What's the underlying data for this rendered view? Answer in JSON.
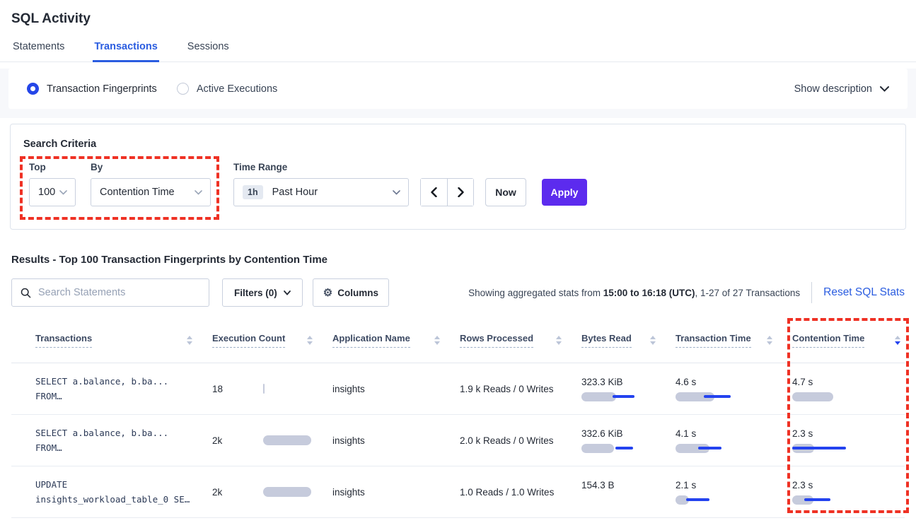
{
  "page_title": "SQL Activity",
  "tabs": {
    "statements": "Statements",
    "transactions": "Transactions",
    "sessions": "Sessions"
  },
  "view_toggle": {
    "fingerprints_label": "Transaction Fingerprints",
    "active_executions_label": "Active Executions",
    "show_description_label": "Show description"
  },
  "search_criteria": {
    "title": "Search Criteria",
    "top_label": "Top",
    "top_value": "100",
    "by_label": "By",
    "by_value": "Contention Time",
    "time_range_label": "Time Range",
    "time_range_badge": "1h",
    "time_range_value": "Past Hour",
    "now_label": "Now",
    "apply_label": "Apply"
  },
  "results": {
    "heading": "Results - Top 100 Transaction Fingerprints by Contention Time",
    "search_placeholder": "Search Statements",
    "filters_label": "Filters (0)",
    "columns_label": "Columns",
    "stats_prefix": "Showing aggregated stats from ",
    "stats_bold": "15:00 to 16:18 (UTC)",
    "stats_suffix": ", 1-27 of 27 Transactions",
    "reset_label": "Reset SQL Stats"
  },
  "table": {
    "headers": [
      {
        "label": "Transactions",
        "sort": "none"
      },
      {
        "label": "Execution Count",
        "sort": "none"
      },
      {
        "label": "Application Name",
        "sort": "none"
      },
      {
        "label": "Rows Processed",
        "sort": "none"
      },
      {
        "label": "Bytes Read",
        "sort": "none"
      },
      {
        "label": "Transaction Time",
        "sort": "none"
      },
      {
        "label": "Contention Time",
        "sort": "desc"
      }
    ],
    "rows": [
      {
        "sql_line1": "SELECT a.balance, b.ba...",
        "sql_line2": "FROM…",
        "execution_count": "18",
        "application": "insights",
        "rows_processed": "1.9 k Reads / 0 Writes",
        "bytes_read": "323.3 KiB",
        "transaction_time": "4.6 s",
        "contention_time": "4.7 s",
        "bars": {
          "exec": {
            "bar": 2
          },
          "bytes": {
            "bar": 49,
            "line": [
              44,
              75
            ]
          },
          "txn": {
            "bar": 55,
            "line": [
              40,
              78
            ]
          },
          "cont": {
            "bar": 58
          }
        }
      },
      {
        "sql_line1": "SELECT a.balance, b.ba...",
        "sql_line2": "FROM…",
        "execution_count": "2k",
        "application": "insights",
        "rows_processed": "2.0 k Reads / 0 Writes",
        "bytes_read": "332.6 KiB",
        "transaction_time": "4.1 s",
        "contention_time": "2.3 s",
        "bars": {
          "exec": {
            "bar": 68
          },
          "bytes": {
            "bar": 46,
            "line": [
              48,
              73
            ]
          },
          "txn": {
            "bar": 48,
            "line": [
              32,
              65
            ]
          },
          "cont": {
            "bar": 31,
            "line": [
              0,
              76
            ]
          }
        }
      },
      {
        "sql_line1": "UPDATE",
        "sql_line2": "insights_workload_table_0 SE…",
        "execution_count": "2k",
        "application": "insights",
        "rows_processed": "1.0 Reads / 1.0 Writes",
        "bytes_read": "154.3 B",
        "transaction_time": "2.1 s",
        "contention_time": "2.3 s",
        "bars": {
          "exec": {
            "bar": 68
          },
          "txn": {
            "bar": 19,
            "line": [
              15,
              48
            ]
          },
          "cont": {
            "bar": 30,
            "line": [
              17,
              54
            ]
          }
        }
      }
    ]
  },
  "colors": {
    "accent_blue": "#2b5de0",
    "apply_purple": "#5c2bee",
    "bar_gray": "#c6cbdc",
    "bar_blue": "#2443ef",
    "highlight_red": "#ef3124"
  }
}
